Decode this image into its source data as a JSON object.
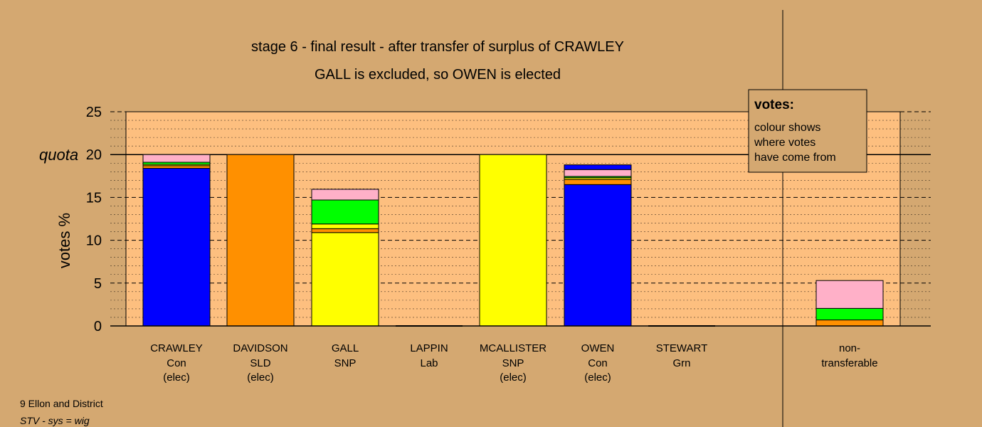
{
  "chart_data": {
    "type": "bar",
    "stacked": true,
    "title": "stage 6 - final result - after transfer of surplus of CRAWLEY",
    "subtitle": "GALL is excluded, so OWEN is elected",
    "ylabel": "votes %",
    "ylim": [
      0,
      25
    ],
    "yticks": [
      0,
      5,
      10,
      15,
      20,
      25
    ],
    "quota": 20,
    "quota_label": "quota",
    "colors": {
      "background": "#d4a871",
      "plot_background": "#fdbf7f",
      "Con": "#0000ff",
      "SLD": "#ff9000",
      "SNP": "#ffff00",
      "Grn": "#00ff00",
      "Lab": "#ffb0c8"
    },
    "categories": [
      {
        "name": "CRAWLEY",
        "party": "Con",
        "note": "(elec)",
        "segments": [
          {
            "from": "Con",
            "value": 18.4
          },
          {
            "from": "SLD",
            "value": 0.3
          },
          {
            "from": "SNP",
            "value": 0.15
          },
          {
            "from": "Grn",
            "value": 0.25
          },
          {
            "from": "Lab",
            "value": 0.9
          }
        ]
      },
      {
        "name": "DAVIDSON",
        "party": "SLD",
        "note": "(elec)",
        "segments": [
          {
            "from": "SLD",
            "value": 20.0
          }
        ]
      },
      {
        "name": "GALL",
        "party": "SNP",
        "note": "",
        "segments": [
          {
            "from": "SNP",
            "value": 10.9
          },
          {
            "from": "SLD",
            "value": 0.45
          },
          {
            "from": "SNP",
            "value": 0.55
          },
          {
            "from": "Grn",
            "value": 2.8
          },
          {
            "from": "Lab",
            "value": 1.25
          }
        ]
      },
      {
        "name": "LAPPIN",
        "party": "Lab",
        "note": "",
        "segments": []
      },
      {
        "name": "MCALLISTER",
        "party": "SNP",
        "note": "(elec)",
        "segments": [
          {
            "from": "SNP",
            "value": 20.0
          }
        ]
      },
      {
        "name": "OWEN",
        "party": "Con",
        "note": "(elec)",
        "segments": [
          {
            "from": "Con",
            "value": 16.5
          },
          {
            "from": "SLD",
            "value": 0.6
          },
          {
            "from": "SNP",
            "value": 0.2
          },
          {
            "from": "Grn",
            "value": 0.15
          },
          {
            "from": "Lab",
            "value": 0.8
          },
          {
            "from": "Con",
            "value": 0.55
          }
        ]
      },
      {
        "name": "STEWART",
        "party": "Grn",
        "note": "",
        "segments": []
      }
    ],
    "nontransferable": {
      "name": "non-",
      "name2": "transferable",
      "segments": [
        {
          "from": "SLD",
          "value": 0.7
        },
        {
          "from": "Grn",
          "value": 1.35
        },
        {
          "from": "Lab",
          "value": 3.25
        }
      ]
    },
    "legend": {
      "title": "votes:",
      "lines": [
        "colour shows",
        "where votes",
        "have come from"
      ],
      "position": "top-right"
    }
  },
  "footer": {
    "line1": "9 Ellon and District",
    "line2": "STV - sys = wig"
  }
}
